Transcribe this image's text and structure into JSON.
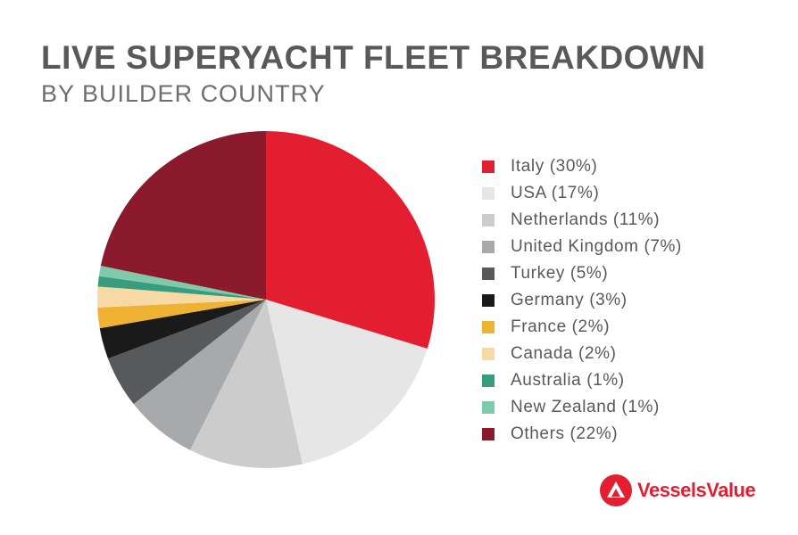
{
  "header": {
    "title": "LIVE SUPERYACHT FLEET BREAKDOWN",
    "subtitle": "BY BUILDER COUNTRY"
  },
  "brand": {
    "name": "VesselsValue",
    "color": "#e31e30",
    "icon": "vesselsvalue-logo-icon"
  },
  "chart_data": {
    "type": "pie",
    "title": "LIVE SUPERYACHT FLEET BREAKDOWN",
    "subtitle": "BY BUILDER COUNTRY",
    "legend_position": "right",
    "start_angle": "12 o'clock",
    "direction": "clockwise",
    "slices": [
      {
        "label": "Italy (30%)",
        "value": 30,
        "color": "#e31e30"
      },
      {
        "label": "USA (17%)",
        "value": 17,
        "color": "#e6e6e6"
      },
      {
        "label": "Netherlands (11%)",
        "value": 11,
        "color": "#cccccc"
      },
      {
        "label": "United Kingdom (7%)",
        "value": 7,
        "color": "#a7a9ab"
      },
      {
        "label": "Turkey (5%)",
        "value": 5,
        "color": "#58595b"
      },
      {
        "label": "Germany (3%)",
        "value": 3,
        "color": "#1a1a1a"
      },
      {
        "label": "France (2%)",
        "value": 2,
        "color": "#f0b232"
      },
      {
        "label": "Canada (2%)",
        "value": 2,
        "color": "#f7d9a5"
      },
      {
        "label": "Australia (1%)",
        "value": 1,
        "color": "#3a9c7f"
      },
      {
        "label": "New Zealand (1%)",
        "value": 1,
        "color": "#7fcba9"
      },
      {
        "label": "Others (22%)",
        "value": 22,
        "color": "#8b1a2c"
      }
    ]
  }
}
